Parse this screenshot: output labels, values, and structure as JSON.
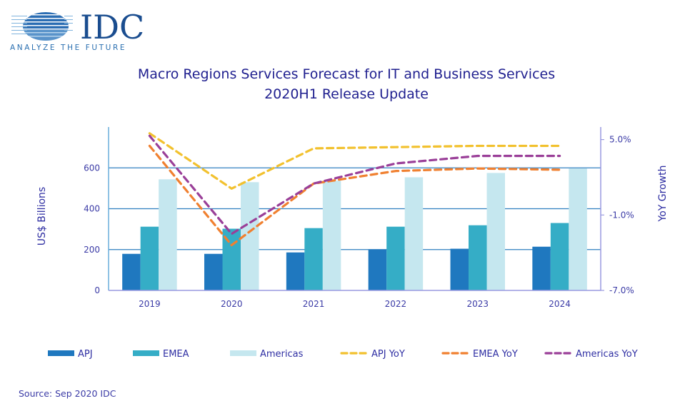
{
  "logo": {
    "brand": "IDC",
    "tagline": "ANALYZE THE FUTURE",
    "colors": {
      "brand": "#1a4d8f",
      "tagline": "#2a6fb0"
    }
  },
  "chart_data": {
    "type": "bar",
    "title": "Macro Regions Services Forecast for IT and Business Services",
    "subtitle": "2020H1 Release Update",
    "categories": [
      "2019",
      "2020",
      "2021",
      "2022",
      "2023",
      "2024"
    ],
    "ylabel": "US$ Billions",
    "y2label": "YoY Growth",
    "ylim": [
      0,
      800
    ],
    "yticks": [
      0,
      200,
      400,
      600
    ],
    "ytick_labels": [
      "0",
      "200",
      "400",
      "600"
    ],
    "y2lim": [
      -7.0,
      6.0
    ],
    "y2ticks": [
      -7.0,
      -1.0,
      5.0
    ],
    "y2tick_labels": [
      "-7.0%",
      "-1.0%",
      "5.0%"
    ],
    "grid": true,
    "legend_position": "bottom",
    "series": [
      {
        "name": "APJ",
        "kind": "bar",
        "axis": "left",
        "color": "#1f78bf",
        "values": [
          179,
          179,
          186,
          200,
          204,
          214
        ]
      },
      {
        "name": "EMEA",
        "kind": "bar",
        "axis": "left",
        "color": "#35adc6",
        "values": [
          312,
          302,
          305,
          312,
          319,
          330
        ]
      },
      {
        "name": "Americas",
        "kind": "bar",
        "axis": "left",
        "color": "#c5e7ef",
        "values": [
          544,
          530,
          537,
          554,
          575,
          597
        ]
      },
      {
        "name": "APJ YoY",
        "kind": "line",
        "axis": "right",
        "style": "dashed",
        "color": "#f2c12e",
        "values": [
          5.5,
          1.1,
          4.3,
          4.4,
          4.5,
          4.5
        ]
      },
      {
        "name": "EMEA YoY",
        "kind": "line",
        "axis": "right",
        "style": "dashed",
        "color": "#f08030",
        "values": [
          4.5,
          -3.4,
          1.5,
          2.5,
          2.7,
          2.6
        ]
      },
      {
        "name": "Americas YoY",
        "kind": "line",
        "axis": "right",
        "style": "dashed",
        "color": "#9a3f98",
        "values": [
          5.3,
          -2.5,
          1.5,
          3.1,
          3.7,
          3.7
        ]
      }
    ],
    "source": "Source: Sep 2020 IDC"
  }
}
